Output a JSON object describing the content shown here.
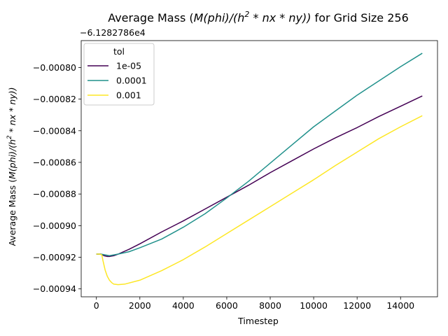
{
  "chart_data": {
    "type": "line",
    "title_main": "Average Mass (",
    "title_math": "M(phi)/(h",
    "title_sup": "2",
    "title_math2": " * nx * ny))",
    "title_tail": " for Grid Size 256",
    "xlabel": "Timestep",
    "ylabel_main": "Average Mass (",
    "ylabel_math": "M(phi)/(h",
    "ylabel_sup": "2",
    "ylabel_math2": " * nx * ny))",
    "offset_label": "−6.1282786e4",
    "xlim": [
      -700,
      15700
    ],
    "ylim": [
      -0.000945,
      -0.000783
    ],
    "x_ticks": [
      0,
      2000,
      4000,
      6000,
      8000,
      10000,
      12000,
      14000
    ],
    "x_tick_labels": [
      "0",
      "2000",
      "4000",
      "6000",
      "8000",
      "10000",
      "12000",
      "14000"
    ],
    "y_ticks": [
      -0.00094,
      -0.00092,
      -0.0009,
      -0.00088,
      -0.00086,
      -0.00084,
      -0.00082,
      -0.0008
    ],
    "y_tick_labels": [
      "−0.00094",
      "−0.00092",
      "−0.00090",
      "−0.00088",
      "−0.00086",
      "−0.00084",
      "−0.00082",
      "−0.00080"
    ],
    "grid": false,
    "legend": {
      "title": "tol",
      "placement": "top-left"
    },
    "series": [
      {
        "name": "1e-05",
        "color": "#440154",
        "points": [
          [
            0,
            -0.000918
          ],
          [
            100,
            -0.000918
          ],
          [
            200,
            -0.000918
          ],
          [
            350,
            -0.000919
          ],
          [
            500,
            -0.0009195
          ],
          [
            600,
            -0.0009195
          ],
          [
            800,
            -0.000919
          ],
          [
            1000,
            -0.000918
          ],
          [
            1500,
            -0.000915
          ],
          [
            2000,
            -0.0009115
          ],
          [
            3000,
            -0.000904
          ],
          [
            4000,
            -0.000897
          ],
          [
            5000,
            -0.0008895
          ],
          [
            6000,
            -0.000882
          ],
          [
            7000,
            -0.0008745
          ],
          [
            8000,
            -0.0008665
          ],
          [
            9000,
            -0.000859
          ],
          [
            10000,
            -0.0008515
          ],
          [
            11000,
            -0.0008445
          ],
          [
            12000,
            -0.000838
          ],
          [
            13000,
            -0.000831
          ],
          [
            14000,
            -0.0008245
          ],
          [
            15000,
            -0.000818
          ]
        ]
      },
      {
        "name": "0.0001",
        "color": "#21918c",
        "points": [
          [
            0,
            -0.000918
          ],
          [
            200,
            -0.000918
          ],
          [
            400,
            -0.0009185
          ],
          [
            600,
            -0.000919
          ],
          [
            800,
            -0.0009185
          ],
          [
            1000,
            -0.000918
          ],
          [
            1500,
            -0.0009165
          ],
          [
            2000,
            -0.000914
          ],
          [
            3000,
            -0.0009085
          ],
          [
            4000,
            -0.000901
          ],
          [
            5000,
            -0.0008925
          ],
          [
            6000,
            -0.0008825
          ],
          [
            7000,
            -0.000872
          ],
          [
            8000,
            -0.0008605
          ],
          [
            9000,
            -0.000849
          ],
          [
            10000,
            -0.0008375
          ],
          [
            11000,
            -0.0008275
          ],
          [
            12000,
            -0.0008175
          ],
          [
            13000,
            -0.0008085
          ],
          [
            14000,
            -0.0007995
          ],
          [
            15000,
            -0.000791
          ]
        ]
      },
      {
        "name": "0.001",
        "color": "#fde725",
        "points": [
          [
            0,
            -0.000918
          ],
          [
            150,
            -0.000918
          ],
          [
            250,
            -0.0009185
          ],
          [
            300,
            -0.000922
          ],
          [
            400,
            -0.000928
          ],
          [
            500,
            -0.000932
          ],
          [
            600,
            -0.0009345
          ],
          [
            700,
            -0.000936
          ],
          [
            800,
            -0.000937
          ],
          [
            1000,
            -0.0009373
          ],
          [
            1300,
            -0.000937
          ],
          [
            2000,
            -0.0009345
          ],
          [
            3000,
            -0.0009285
          ],
          [
            4000,
            -0.0009215
          ],
          [
            5000,
            -0.0009135
          ],
          [
            6000,
            -0.000905
          ],
          [
            7000,
            -0.0008965
          ],
          [
            8000,
            -0.000888
          ],
          [
            9000,
            -0.0008795
          ],
          [
            10000,
            -0.000871
          ],
          [
            11000,
            -0.000862
          ],
          [
            12000,
            -0.0008535
          ],
          [
            13000,
            -0.000845
          ],
          [
            14000,
            -0.0008375
          ],
          [
            15000,
            -0.0008305
          ]
        ]
      }
    ]
  }
}
